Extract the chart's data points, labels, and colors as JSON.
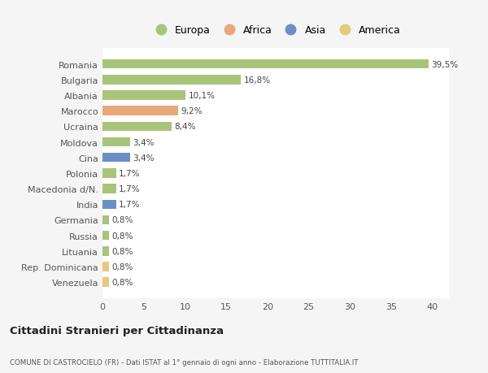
{
  "categories": [
    "Venezuela",
    "Rep. Dominicana",
    "Lituania",
    "Russia",
    "Germania",
    "India",
    "Macedonia d/N.",
    "Polonia",
    "Cina",
    "Moldova",
    "Ucraina",
    "Marocco",
    "Albania",
    "Bulgaria",
    "Romania"
  ],
  "values": [
    0.8,
    0.8,
    0.8,
    0.8,
    0.8,
    1.7,
    1.7,
    1.7,
    3.4,
    3.4,
    8.4,
    9.2,
    10.1,
    16.8,
    39.5
  ],
  "labels": [
    "0,8%",
    "0,8%",
    "0,8%",
    "0,8%",
    "0,8%",
    "1,7%",
    "1,7%",
    "1,7%",
    "3,4%",
    "3,4%",
    "8,4%",
    "9,2%",
    "10,1%",
    "16,8%",
    "39,5%"
  ],
  "colors": [
    "#e8c97a",
    "#e8c97a",
    "#a8c47a",
    "#a8c47a",
    "#a8c47a",
    "#6b8fc4",
    "#a8c47a",
    "#a8c47a",
    "#6b8fc4",
    "#a8c47a",
    "#a8c47a",
    "#e8a87a",
    "#a8c47a",
    "#a8c47a",
    "#a8c47a"
  ],
  "continent": [
    "America",
    "America",
    "Europa",
    "Europa",
    "Europa",
    "Asia",
    "Europa",
    "Europa",
    "Asia",
    "Europa",
    "Europa",
    "Africa",
    "Europa",
    "Europa",
    "Europa"
  ],
  "legend_labels": [
    "Europa",
    "Africa",
    "Asia",
    "America"
  ],
  "legend_colors": [
    "#a8c47a",
    "#e8a87a",
    "#6b8fc4",
    "#e8c97a"
  ],
  "xlim": [
    0,
    42
  ],
  "xticks": [
    0,
    5,
    10,
    15,
    20,
    25,
    30,
    35,
    40
  ],
  "title": "Cittadini Stranieri per Cittadinanza",
  "subtitle": "COMUNE DI CASTROCIELO (FR) - Dati ISTAT al 1° gennaio di ogni anno - Elaborazione TUTTITALIA.IT",
  "bg_color": "#f5f5f5",
  "plot_bg": "#ffffff",
  "grid_color": "#ffffff",
  "bar_height": 0.6
}
